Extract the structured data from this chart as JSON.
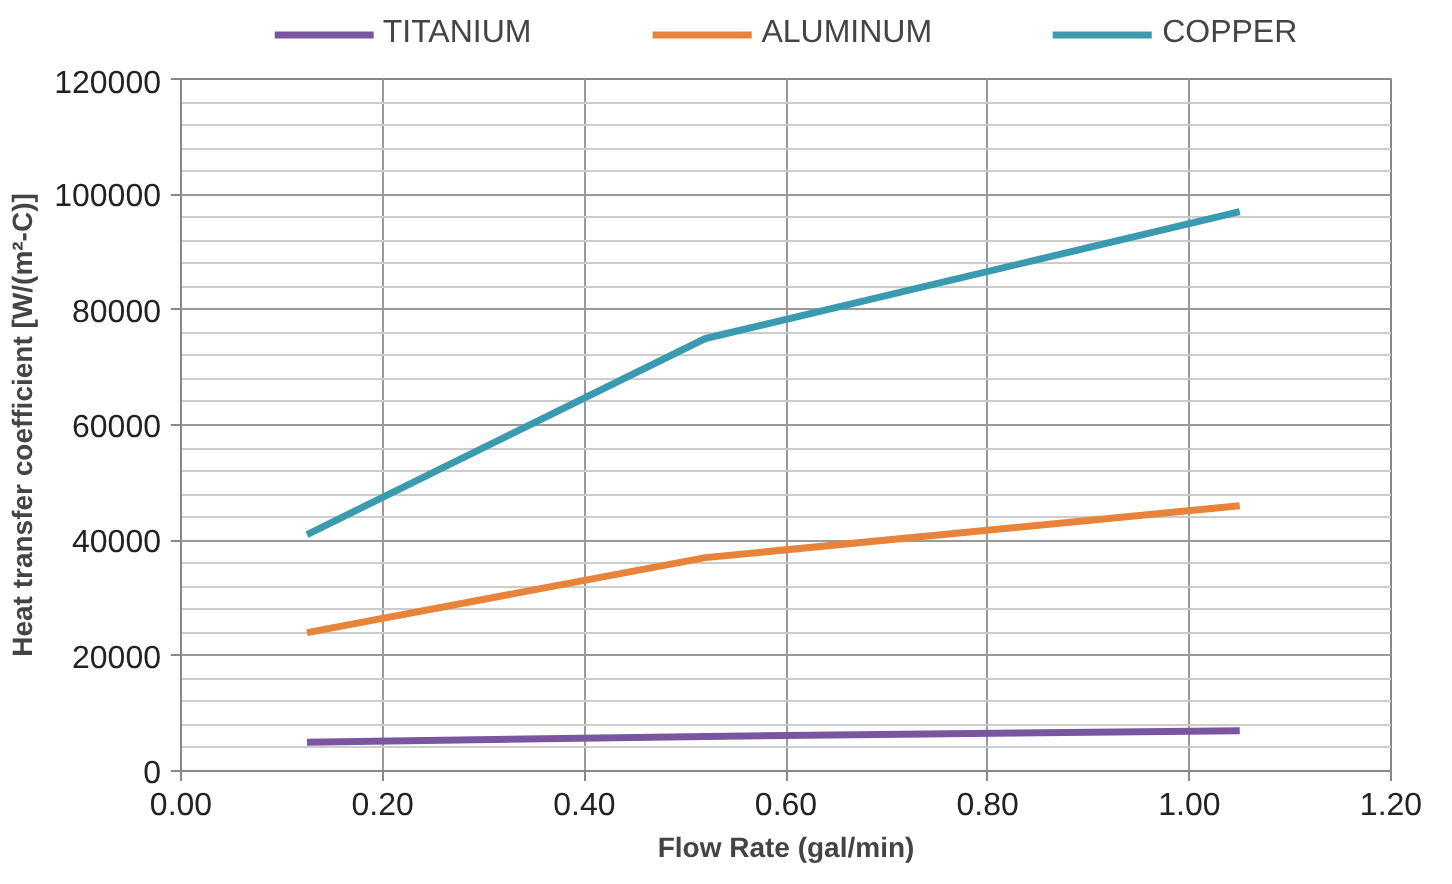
{
  "chart_data": {
    "type": "line",
    "xlabel": "Flow Rate (gal/min)",
    "ylabel": "Heat transfer coefficient [W/(m²-C)]",
    "x": [
      0.125,
      0.52,
      1.05
    ],
    "series": [
      {
        "name": "TITANIUM",
        "color": "#7b56a0",
        "values": [
          5000,
          6000,
          7000
        ]
      },
      {
        "name": "ALUMINUM",
        "color": "#e8843a",
        "values": [
          24000,
          37000,
          46000
        ]
      },
      {
        "name": "COPPER",
        "color": "#3a9bb0",
        "values": [
          41000,
          75000,
          97000
        ]
      }
    ],
    "xlim": [
      0,
      1.2
    ],
    "xticks": [
      {
        "value": 0,
        "label": "0.00"
      },
      {
        "value": 0.2,
        "label": "0.20"
      },
      {
        "value": 0.4,
        "label": "0.40"
      },
      {
        "value": 0.6,
        "label": "0.60"
      },
      {
        "value": 0.8,
        "label": "0.80"
      },
      {
        "value": 1.0,
        "label": "1.00"
      },
      {
        "value": 1.2,
        "label": "1.20"
      }
    ],
    "ylim": [
      0,
      120000
    ],
    "yticks": [
      0,
      20000,
      40000,
      60000,
      80000,
      100000,
      120000
    ],
    "grid": true,
    "legend": "top",
    "marker": "none",
    "line_style": "solid"
  }
}
